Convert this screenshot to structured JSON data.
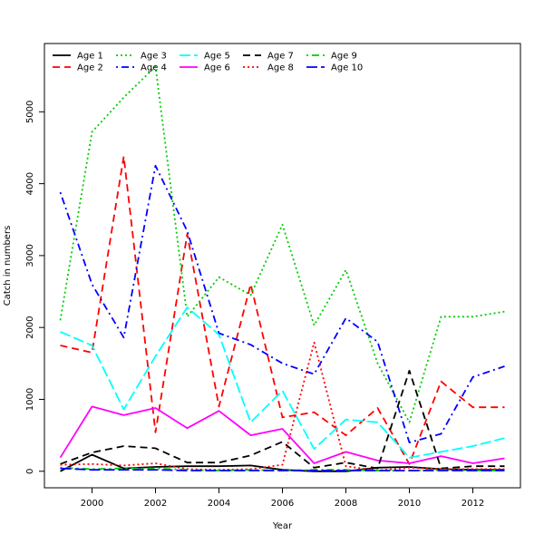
{
  "chart_data": {
    "type": "line",
    "title": "",
    "xlabel": "Year",
    "ylabel": "Catch in numbers",
    "xlim": [
      1998.5,
      2013.5
    ],
    "ylim": [
      -230,
      5950
    ],
    "x_ticks": [
      2000,
      2002,
      2004,
      2006,
      2008,
      2010,
      2012
    ],
    "y_ticks": [
      0,
      1000,
      2000,
      3000,
      4000,
      5000
    ],
    "grid": false,
    "legend_position": "top-left",
    "x": [
      1999,
      2000,
      2001,
      2002,
      2003,
      2004,
      2005,
      2006,
      2007,
      2008,
      2009,
      2010,
      2011,
      2012,
      2013
    ],
    "series": [
      {
        "name": "Age 1",
        "color": "#000000",
        "dash": "solid",
        "values": [
          0,
          230,
          40,
          60,
          70,
          70,
          80,
          20,
          0,
          0,
          50,
          60,
          30,
          20,
          20
        ]
      },
      {
        "name": "Age 2",
        "color": "#FF0000",
        "dash": "dashed",
        "values": [
          1750,
          1650,
          4380,
          540,
          3300,
          900,
          2600,
          750,
          820,
          500,
          880,
          100,
          1250,
          890,
          890
        ]
      },
      {
        "name": "Age 3",
        "color": "#00CD00",
        "dash": "dotted",
        "values": [
          2100,
          4720,
          5200,
          5630,
          2150,
          2700,
          2450,
          3430,
          2030,
          2800,
          1500,
          680,
          2150,
          2150,
          2220
        ]
      },
      {
        "name": "Age 4",
        "color": "#0000FF",
        "dash": "dotdash",
        "values": [
          3880,
          2600,
          1860,
          4250,
          3340,
          1920,
          1760,
          1500,
          1350,
          2130,
          1800,
          400,
          520,
          1310,
          1460
        ]
      },
      {
        "name": "Age 5",
        "color": "#00FFFF",
        "dash": "longdash",
        "values": [
          1940,
          1750,
          860,
          1600,
          2280,
          1900,
          680,
          1120,
          310,
          720,
          680,
          190,
          270,
          350,
          460
        ]
      },
      {
        "name": "Age 6",
        "color": "#FF00FF",
        "dash": "solid",
        "values": [
          190,
          900,
          780,
          880,
          600,
          840,
          500,
          590,
          110,
          270,
          150,
          110,
          210,
          110,
          180
        ]
      },
      {
        "name": "Age 7",
        "color": "#000000",
        "dash": "dashed",
        "values": [
          100,
          260,
          350,
          320,
          120,
          120,
          220,
          410,
          50,
          120,
          40,
          1400,
          40,
          70,
          70
        ]
      },
      {
        "name": "Age 8",
        "color": "#FF0000",
        "dash": "dotted",
        "values": [
          90,
          100,
          80,
          110,
          30,
          20,
          30,
          90,
          1790,
          70,
          10,
          50,
          30,
          30,
          30
        ]
      },
      {
        "name": "Age 9",
        "color": "#00CD00",
        "dash": "dotdash",
        "values": [
          50,
          30,
          40,
          40,
          20,
          10,
          20,
          10,
          20,
          20,
          10,
          10,
          20,
          10,
          10
        ]
      },
      {
        "name": "Age 10",
        "color": "#0000FF",
        "dash": "longdash",
        "values": [
          40,
          20,
          20,
          20,
          10,
          10,
          10,
          10,
          10,
          10,
          10,
          10,
          10,
          10,
          10
        ]
      }
    ]
  }
}
